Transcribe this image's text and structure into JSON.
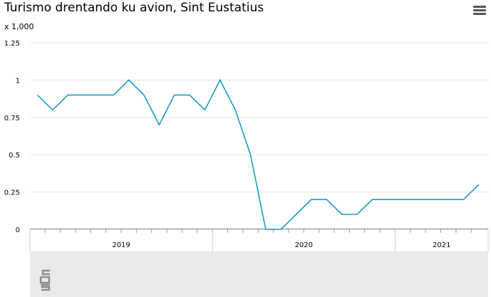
{
  "chart_data": {
    "type": "line",
    "title": "Turismo drentando ku avion, Sint Eustatius",
    "unit_label": "x 1,000",
    "ylim": [
      0,
      1.25
    ],
    "y_ticks": [
      {
        "value": 0,
        "label": "0"
      },
      {
        "value": 0.25,
        "label": "0.25"
      },
      {
        "value": 0.5,
        "label": "0.5"
      },
      {
        "value": 0.75,
        "label": "0.75"
      },
      {
        "value": 1,
        "label": "1"
      },
      {
        "value": 1.25,
        "label": "1.25"
      }
    ],
    "grid": true,
    "legend": "none",
    "x_start": "2019-01",
    "year_groups": [
      {
        "label": "2019",
        "months": 12
      },
      {
        "label": "2020",
        "months": 12
      },
      {
        "label": "2021",
        "months": 6
      }
    ],
    "series": [
      {
        "color": "#1a9bc7",
        "values": [
          0.9,
          0.8,
          0.9,
          0.9,
          0.9,
          0.9,
          1.0,
          0.9,
          0.7,
          0.9,
          0.9,
          0.8,
          1.0,
          0.8,
          0.5,
          0.0,
          0.0,
          0.1,
          0.2,
          0.2,
          0.1,
          0.1,
          0.2,
          0.2,
          0.2,
          0.2,
          0.2,
          0.2,
          0.2,
          0.3
        ]
      }
    ]
  },
  "toolbar": {
    "menu_icon": "hamburger-menu-icon"
  },
  "footer": {
    "logo_icon": "cbs-logo"
  }
}
